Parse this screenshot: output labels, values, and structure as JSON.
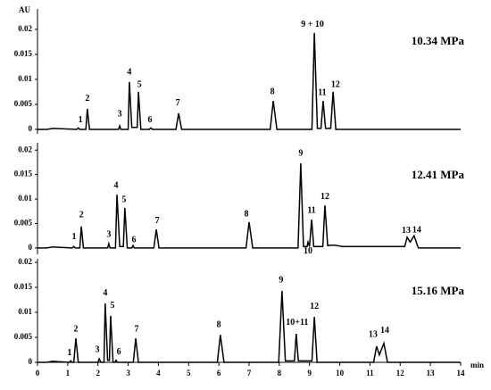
{
  "chart_data": [
    {
      "type": "line",
      "subtitle": "10.34 MPa",
      "ylabel": "AU",
      "xlim": [
        0,
        14
      ],
      "ylim": [
        -0.0009,
        0.0241
      ],
      "yticks": [
        0,
        0.005,
        0.01,
        0.015,
        0.02
      ],
      "series": [
        {
          "color": "#000000",
          "x": [
            0,
            0.3,
            0.52,
            1.3,
            1.35,
            1.4,
            1.6,
            1.65,
            1.72,
            2.68,
            2.72,
            2.76,
            3.0,
            3.04,
            3.12,
            3.18,
            3.3,
            3.34,
            3.42,
            3.7,
            3.75,
            3.8,
            4.58,
            4.67,
            4.77,
            7.7,
            7.8,
            7.92,
            9.08,
            9.16,
            9.26,
            9.38,
            9.45,
            9.53,
            9.7,
            9.78,
            9.87,
            14
          ],
          "values": [
            0,
            0,
            0.0002,
            0,
            0.0003,
            0,
            0,
            0.0041,
            0,
            0,
            0.0007,
            0,
            0,
            0.0095,
            0.0004,
            0.0004,
            0.0004,
            0.0075,
            0,
            0,
            0.0003,
            0,
            0,
            0.0032,
            0,
            0,
            0.0057,
            0,
            0,
            0.0193,
            0.0002,
            0.0002,
            0.0057,
            0.0002,
            0.0002,
            0.0075,
            0,
            0
          ]
        }
      ],
      "annotations": [
        {
          "text": "1",
          "x": 1.42,
          "y": 0.0018
        },
        {
          "text": "2",
          "x": 1.65,
          "y": 0.0061
        },
        {
          "text": "3",
          "x": 2.72,
          "y": 0.003
        },
        {
          "text": "4",
          "x": 3.04,
          "y": 0.0114
        },
        {
          "text": "5",
          "x": 3.37,
          "y": 0.0089
        },
        {
          "text": "6",
          "x": 3.72,
          "y": 0.0018
        },
        {
          "text": "7",
          "x": 4.64,
          "y": 0.0052
        },
        {
          "text": "8",
          "x": 7.77,
          "y": 0.0075
        },
        {
          "text": "9 + 10",
          "x": 9.1,
          "y": 0.0209
        },
        {
          "text": "11",
          "x": 9.42,
          "y": 0.0073
        },
        {
          "text": "12",
          "x": 9.86,
          "y": 0.0089
        }
      ]
    },
    {
      "type": "line",
      "subtitle": "12.41 MPa",
      "xlim": [
        0,
        14
      ],
      "ylim": [
        -0.0013,
        0.0215
      ],
      "yticks": [
        0,
        0.005,
        0.01,
        0.015,
        0.02
      ],
      "series": [
        {
          "color": "#000000",
          "x": [
            0,
            0.3,
            0.5,
            1.15,
            1.2,
            1.25,
            1.4,
            1.45,
            1.52,
            2.32,
            2.36,
            2.4,
            2.58,
            2.63,
            2.72,
            2.84,
            2.89,
            2.97,
            3.12,
            3.16,
            3.2,
            3.85,
            3.93,
            4.02,
            6.9,
            7.0,
            7.12,
            8.62,
            8.71,
            8.8,
            8.92,
            8.95,
            9.0,
            9.07,
            9.14,
            9.44,
            9.51,
            9.6,
            9.8,
            10.1,
            12.15,
            12.23,
            12.33,
            12.46,
            12.6,
            14
          ],
          "values": [
            0,
            0,
            0.0002,
            0,
            0.0003,
            0,
            0,
            0.0044,
            0,
            0,
            0.0009,
            0,
            0,
            0.0109,
            0.0003,
            0.0003,
            0.0082,
            0,
            0,
            0.0005,
            0,
            0,
            0.0038,
            0,
            0,
            0.0053,
            0,
            0,
            0.0173,
            0.0003,
            0.0003,
            0.0012,
            0.0003,
            0.0058,
            0.0003,
            0.0003,
            0.0087,
            0.0005,
            0.0006,
            0.0003,
            0.0003,
            0.0022,
            0.0012,
            0.0025,
            0,
            0
          ]
        }
      ],
      "annotations": [
        {
          "text": "1",
          "x": 1.21,
          "y": 0.0022
        },
        {
          "text": "2",
          "x": 1.45,
          "y": 0.0067
        },
        {
          "text": "3",
          "x": 2.36,
          "y": 0.0027
        },
        {
          "text": "4",
          "x": 2.6,
          "y": 0.0127
        },
        {
          "text": "5",
          "x": 2.86,
          "y": 0.0098
        },
        {
          "text": "6",
          "x": 3.19,
          "y": 0.0016
        },
        {
          "text": "7",
          "x": 3.96,
          "y": 0.0055
        },
        {
          "text": "8",
          "x": 6.91,
          "y": 0.0069
        },
        {
          "text": "9",
          "x": 8.71,
          "y": 0.0193
        },
        {
          "text": "10",
          "x": 8.95,
          "y": -0.0007
        },
        {
          "text": "11",
          "x": 9.07,
          "y": 0.0076
        },
        {
          "text": "12",
          "x": 9.51,
          "y": 0.0104
        },
        {
          "text": "13",
          "x": 12.2,
          "y": 0.0035
        },
        {
          "text": "14",
          "x": 12.55,
          "y": 0.0036
        }
      ]
    },
    {
      "type": "line",
      "subtitle": "15.16 MPa",
      "xlabel": "min",
      "xlim": [
        0,
        14
      ],
      "xticks": [
        0,
        1,
        2,
        3,
        4,
        5,
        6,
        7,
        8,
        9,
        10,
        11,
        12,
        13,
        14
      ],
      "ylim": [
        0,
        0.0207
      ],
      "yticks": [
        0,
        0.005,
        0.01,
        0.015,
        0.02
      ],
      "series": [
        {
          "color": "#000000",
          "x": [
            0,
            0.3,
            0.5,
            1.05,
            1.1,
            1.15,
            1.2,
            1.27,
            1.35,
            2.0,
            2.04,
            2.1,
            2.2,
            2.24,
            2.32,
            2.38,
            2.42,
            2.5,
            2.56,
            2.6,
            2.64,
            3.17,
            3.25,
            3.34,
            5.95,
            6.05,
            6.17,
            7.98,
            8.09,
            8.2,
            8.5,
            8.56,
            8.63,
            9.08,
            9.16,
            9.25,
            11.12,
            11.22,
            11.31,
            11.46,
            11.58,
            14
          ],
          "values": [
            0,
            0,
            0.0002,
            0,
            0.0003,
            0,
            0,
            0.0048,
            0,
            0,
            0.0007,
            0,
            0,
            0.0118,
            0.0004,
            0.0004,
            0.0093,
            0,
            0,
            0.0004,
            0,
            0,
            0.0048,
            0,
            0,
            0.0055,
            0,
            0,
            0.0143,
            0.0003,
            0.0003,
            0.0057,
            0.0003,
            0.0003,
            0.0091,
            0,
            0,
            0.0032,
            0.0015,
            0.0038,
            0,
            0
          ]
        }
      ],
      "annotations": [
        {
          "text": "1",
          "x": 1.06,
          "y": 0.0018
        },
        {
          "text": "2",
          "x": 1.27,
          "y": 0.0066
        },
        {
          "text": "3",
          "x": 1.98,
          "y": 0.0025
        },
        {
          "text": "4",
          "x": 2.24,
          "y": 0.0138
        },
        {
          "text": "5",
          "x": 2.48,
          "y": 0.0113
        },
        {
          "text": "6",
          "x": 2.69,
          "y": 0.002
        },
        {
          "text": "7",
          "x": 3.28,
          "y": 0.0066
        },
        {
          "text": "8",
          "x": 6.0,
          "y": 0.0075
        },
        {
          "text": "9",
          "x": 8.06,
          "y": 0.0164
        },
        {
          "text": "10+11",
          "x": 8.59,
          "y": 0.0079
        },
        {
          "text": "12",
          "x": 9.16,
          "y": 0.0111
        },
        {
          "text": "13",
          "x": 11.1,
          "y": 0.0055
        },
        {
          "text": "14",
          "x": 11.49,
          "y": 0.0063
        }
      ]
    }
  ]
}
